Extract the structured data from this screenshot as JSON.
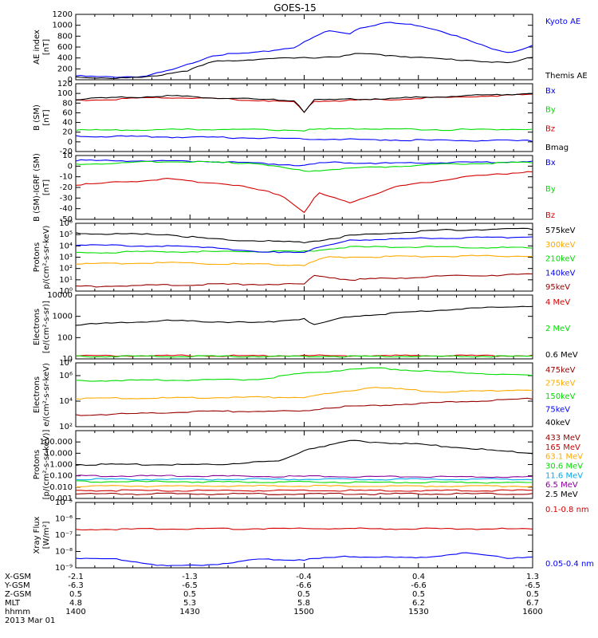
{
  "title": "GOES-15",
  "date_label": "2013 Mar 01",
  "colors": {
    "black": "#000000",
    "blue": "#0000ff",
    "red": "#d40000",
    "green": "#00dd00",
    "orange": "#ffaa00",
    "dkred": "#990000",
    "cyan": "#00aaee",
    "purple": "#880099"
  },
  "footer": {
    "rows": [
      {
        "label": "X-GSM",
        "values": [
          "-2.1",
          "-1.3",
          "-0.4",
          "0.4",
          "1.3"
        ]
      },
      {
        "label": "Y-GSM",
        "values": [
          "-6.3",
          "-6.5",
          "-6.6",
          "-6.6",
          "-6.5"
        ]
      },
      {
        "label": "Z-GSM",
        "values": [
          "0.5",
          "0.5",
          "0.5",
          "0.5",
          "0.5"
        ]
      },
      {
        "label": "MLT",
        "values": [
          "4.8",
          "5.3",
          "5.8",
          "6.2",
          "6.7"
        ]
      },
      {
        "label": "hhmm",
        "values": [
          "1400",
          "1430",
          "1500",
          "1530",
          "1600"
        ]
      }
    ]
  },
  "chart_data": [
    {
      "type": "line",
      "ylabel": [
        "AE index",
        "[nT]"
      ],
      "ylim": [
        0,
        1200
      ],
      "yscale": "linear",
      "yticks": [
        "0",
        "200",
        "400",
        "600",
        "800",
        "1000",
        "1200"
      ],
      "series": [
        {
          "name": "Kyoto AE",
          "color": "#0000ff",
          "key": [
            [
              0,
              70
            ],
            [
              0.06,
              50
            ],
            [
              0.15,
              60
            ],
            [
              0.22,
              200
            ],
            [
              0.3,
              450
            ],
            [
              0.4,
              500
            ],
            [
              0.48,
              600
            ],
            [
              0.55,
              900
            ],
            [
              0.6,
              850
            ],
            [
              0.62,
              950
            ],
            [
              0.68,
              1050
            ],
            [
              0.75,
              1000
            ],
            [
              0.8,
              900
            ],
            [
              0.85,
              750
            ],
            [
              0.9,
              600
            ],
            [
              0.95,
              500
            ],
            [
              1,
              620
            ]
          ]
        },
        {
          "name": "Themis AE",
          "color": "#000000",
          "key": [
            [
              0,
              50
            ],
            [
              0.08,
              30
            ],
            [
              0.15,
              40
            ],
            [
              0.25,
              180
            ],
            [
              0.3,
              330
            ],
            [
              0.4,
              380
            ],
            [
              0.5,
              400
            ],
            [
              0.58,
              430
            ],
            [
              0.62,
              480
            ],
            [
              0.7,
              440
            ],
            [
              0.8,
              380
            ],
            [
              0.88,
              350
            ],
            [
              0.95,
              300
            ],
            [
              1,
              420
            ]
          ]
        }
      ]
    },
    {
      "type": "line",
      "ylabel": [
        "B (SM)",
        "[nT]"
      ],
      "ylim": [
        -20,
        120
      ],
      "yscale": "linear",
      "yticks": [
        "-20",
        "0",
        "20",
        "40",
        "60",
        "80",
        "100",
        "120"
      ],
      "series": [
        {
          "name": "Bx",
          "color": "#0000ff",
          "key": [
            [
              0,
              12
            ],
            [
              0.4,
              8
            ],
            [
              0.6,
              5
            ],
            [
              0.8,
              3
            ],
            [
              1,
              2
            ]
          ]
        },
        {
          "name": "By",
          "color": "#00dd00",
          "key": [
            [
              0,
              24
            ],
            [
              0.3,
              26
            ],
            [
              0.5,
              24
            ],
            [
              0.6,
              28
            ],
            [
              0.8,
              25
            ],
            [
              1,
              26
            ]
          ]
        },
        {
          "name": "Bz",
          "color": "#d40000",
          "key": [
            [
              0,
              85
            ],
            [
              0.2,
              92
            ],
            [
              0.4,
              86
            ],
            [
              0.48,
              82
            ],
            [
              0.5,
              60
            ],
            [
              0.52,
              84
            ],
            [
              0.7,
              88
            ],
            [
              0.85,
              93
            ],
            [
              1,
              98
            ]
          ]
        },
        {
          "name": "Bmag",
          "color": "#000000",
          "key": [
            [
              0,
              88
            ],
            [
              0.2,
              95
            ],
            [
              0.4,
              88
            ],
            [
              0.48,
              85
            ],
            [
              0.5,
              62
            ],
            [
              0.52,
              86
            ],
            [
              0.7,
              90
            ],
            [
              0.85,
              95
            ],
            [
              1,
              100
            ]
          ]
        }
      ]
    },
    {
      "type": "line",
      "ylabel": [
        "B (SM)-IGRF (SM)",
        "[nT]"
      ],
      "ylim": [
        -55,
        10
      ],
      "yscale": "linear",
      "yticks": [
        "-50",
        "-40",
        "-30",
        "-20",
        "-10",
        "0",
        "10"
      ],
      "series": [
        {
          "name": "Bx",
          "color": "#0000ff",
          "key": [
            [
              0,
              5
            ],
            [
              0.3,
              4
            ],
            [
              0.5,
              0
            ],
            [
              0.55,
              3
            ],
            [
              0.7,
              2
            ],
            [
              1,
              4
            ]
          ]
        },
        {
          "name": "By",
          "color": "#00dd00",
          "key": [
            [
              0,
              1
            ],
            [
              0.2,
              4
            ],
            [
              0.4,
              2
            ],
            [
              0.5,
              -6
            ],
            [
              0.6,
              -3
            ],
            [
              0.8,
              1
            ],
            [
              1,
              3
            ]
          ]
        },
        {
          "name": "Bz",
          "color": "#d40000",
          "key": [
            [
              0,
              -20
            ],
            [
              0.2,
              -14
            ],
            [
              0.35,
              -20
            ],
            [
              0.45,
              -30
            ],
            [
              0.5,
              -48
            ],
            [
              0.53,
              -28
            ],
            [
              0.6,
              -38
            ],
            [
              0.7,
              -22
            ],
            [
              0.85,
              -12
            ],
            [
              1,
              -6
            ]
          ]
        }
      ]
    },
    {
      "type": "line",
      "ylabel": [
        "Protons",
        "p/(cm²-s-sr-keV)"
      ],
      "ylim": [
        0,
        6
      ],
      "yscale": "log",
      "yticks": [
        "10⁰",
        "10¹",
        "10²",
        "10³",
        "10⁴",
        "10⁵",
        "10⁶"
      ],
      "series": [
        {
          "name": "575keV",
          "color": "#000000",
          "key": [
            [
              0,
              5.1
            ],
            [
              0.2,
              5.0
            ],
            [
              0.3,
              4.6
            ],
            [
              0.5,
              4.3
            ],
            [
              0.6,
              4.9
            ],
            [
              0.8,
              5.4
            ],
            [
              1,
              5.5
            ]
          ]
        },
        {
          "name": "300keV",
          "color": "#ffaa00",
          "key": [
            [
              0,
              2.4
            ],
            [
              0.2,
              2.5
            ],
            [
              0.5,
              2.3
            ],
            [
              0.55,
              3.0
            ],
            [
              0.8,
              3.1
            ],
            [
              1,
              3.1
            ]
          ]
        },
        {
          "name": "210keV",
          "color": "#00dd00",
          "key": [
            [
              0,
              3.4
            ],
            [
              0.2,
              3.5
            ],
            [
              0.5,
              3.5
            ],
            [
              0.6,
              3.9
            ],
            [
              0.8,
              3.9
            ],
            [
              1,
              3.8
            ]
          ]
        },
        {
          "name": "140keV",
          "color": "#0000ff",
          "key": [
            [
              0,
              4.1
            ],
            [
              0.3,
              3.9
            ],
            [
              0.4,
              3.4
            ],
            [
              0.5,
              3.5
            ],
            [
              0.6,
              4.5
            ],
            [
              0.8,
              4.7
            ],
            [
              1,
              4.8
            ]
          ]
        },
        {
          "name": "95keV",
          "color": "#990000",
          "key": [
            [
              0,
              0.4
            ],
            [
              0.3,
              0.6
            ],
            [
              0.5,
              0.6
            ],
            [
              0.52,
              1.4
            ],
            [
              0.6,
              1.0
            ],
            [
              0.8,
              1.3
            ],
            [
              1,
              1.5
            ]
          ]
        }
      ]
    },
    {
      "type": "line",
      "ylabel": [
        "Electrons",
        "[e/(cm²-s-sr)]"
      ],
      "ylim": [
        1,
        4
      ],
      "yscale": "log",
      "yticks": [
        "10",
        "100",
        "1000",
        "10000"
      ],
      "series": [
        {
          "name": "4 MeV",
          "color": "#d40000",
          "key": [
            [
              0,
              1.15
            ],
            [
              1,
              1.15
            ]
          ]
        },
        {
          "name": "2 MeV",
          "color": "#00dd00",
          "key": [
            [
              0,
              1.12
            ],
            [
              1,
              1.12
            ]
          ]
        },
        {
          "name": "0.6 MeV",
          "color": "#000000",
          "key": [
            [
              0,
              2.6
            ],
            [
              0.2,
              2.8
            ],
            [
              0.4,
              2.7
            ],
            [
              0.5,
              2.9
            ],
            [
              0.52,
              2.6
            ],
            [
              0.6,
              3.0
            ],
            [
              0.8,
              3.3
            ],
            [
              1,
              3.5
            ]
          ]
        }
      ]
    },
    {
      "type": "line",
      "ylabel": [
        "Electrons",
        "e/(cm²-s-sr-keV)"
      ],
      "ylim": [
        2,
        7
      ],
      "yscale": "log",
      "yticks": [
        "10²",
        "10⁴",
        "10⁶",
        "10⁷"
      ],
      "series": [
        {
          "name": "475keV",
          "color": "#990000",
          "key": [
            [
              0,
              2.9
            ],
            [
              0.3,
              3.2
            ],
            [
              0.5,
              3.2
            ],
            [
              0.55,
              3.5
            ],
            [
              0.8,
              3.9
            ],
            [
              1,
              4.2
            ]
          ]
        },
        {
          "name": "275keV",
          "color": "#ffaa00",
          "key": [
            [
              0,
              4.2
            ],
            [
              0.4,
              4.3
            ],
            [
              0.5,
              4.3
            ],
            [
              0.65,
              5.1
            ],
            [
              0.8,
              4.7
            ],
            [
              1,
              4.9
            ]
          ]
        },
        {
          "name": "150keV",
          "color": "#00dd00",
          "key": [
            [
              0,
              5.6
            ],
            [
              0.4,
              5.7
            ],
            [
              0.5,
              6.2
            ],
            [
              0.65,
              6.6
            ],
            [
              0.8,
              6.3
            ],
            [
              1,
              6.0
            ]
          ]
        },
        {
          "name": "75keV",
          "color": "#0000ff",
          "key": []
        },
        {
          "name": "40keV",
          "color": "#000000",
          "key": []
        }
      ]
    },
    {
      "type": "line",
      "ylabel": [
        "Protons",
        "[p/(cm²-s-sr-keV)]"
      ],
      "ylim": [
        -3,
        3
      ],
      "yscale": "log",
      "yticks": [
        "0.001",
        "0.010",
        "0.100",
        "1.000",
        "10.000",
        "100.000"
      ],
      "series": [
        {
          "name": "433 MeV",
          "color": "#990000",
          "key": [
            [
              0,
              -2.6
            ],
            [
              1,
              -2.6
            ]
          ]
        },
        {
          "name": "165 MeV",
          "color": "#d40000",
          "key": [
            [
              0,
              -2.3
            ],
            [
              1,
              -2.3
            ]
          ]
        },
        {
          "name": "63.1 MeV",
          "color": "#ffaa00",
          "key": [
            [
              0,
              -1.9
            ],
            [
              1,
              -1.9
            ]
          ]
        },
        {
          "name": "30.6 MeV",
          "color": "#00dd00",
          "key": [
            [
              0,
              -1.5
            ],
            [
              1,
              -1.6
            ]
          ]
        },
        {
          "name": "11.6 MeV",
          "color": "#00aaee",
          "key": [
            [
              0,
              -1.3
            ],
            [
              1,
              -1.3
            ]
          ]
        },
        {
          "name": "6.5 MeV",
          "color": "#880099",
          "key": [
            [
              0,
              -1.0
            ],
            [
              1,
              -1.1
            ]
          ]
        },
        {
          "name": "2.5 MeV",
          "color": "#000000",
          "key": [
            [
              0,
              0.0
            ],
            [
              0.3,
              0.0
            ],
            [
              0.45,
              0.3
            ],
            [
              0.5,
              1.3
            ],
            [
              0.6,
              2.1
            ],
            [
              0.75,
              1.8
            ],
            [
              0.9,
              1.3
            ],
            [
              1,
              1.0
            ]
          ]
        }
      ]
    },
    {
      "type": "line",
      "ylabel": [
        "Xray Flux",
        "[W/m²]"
      ],
      "ylim": [
        -9,
        -5
      ],
      "yscale": "log",
      "yticks": [
        "10⁻⁹",
        "10⁻⁸",
        "10⁻⁷",
        "10⁻⁶",
        "10⁻⁵"
      ],
      "series": [
        {
          "name": "0.1-0.8 nm",
          "color": "#d40000",
          "key": [
            [
              0,
              -6.65
            ],
            [
              0.5,
              -6.6
            ],
            [
              1,
              -6.62
            ]
          ]
        },
        {
          "name": "0.05-0.4 nm",
          "color": "#0000ff",
          "key": [
            [
              0,
              -8.4
            ],
            [
              0.1,
              -8.5
            ],
            [
              0.2,
              -8.9
            ],
            [
              0.3,
              -8.8
            ],
            [
              0.4,
              -8.5
            ],
            [
              0.5,
              -8.5
            ],
            [
              0.6,
              -8.3
            ],
            [
              0.75,
              -8.4
            ],
            [
              0.85,
              -8.1
            ],
            [
              0.95,
              -8.4
            ],
            [
              1,
              -8.3
            ]
          ]
        }
      ]
    }
  ]
}
